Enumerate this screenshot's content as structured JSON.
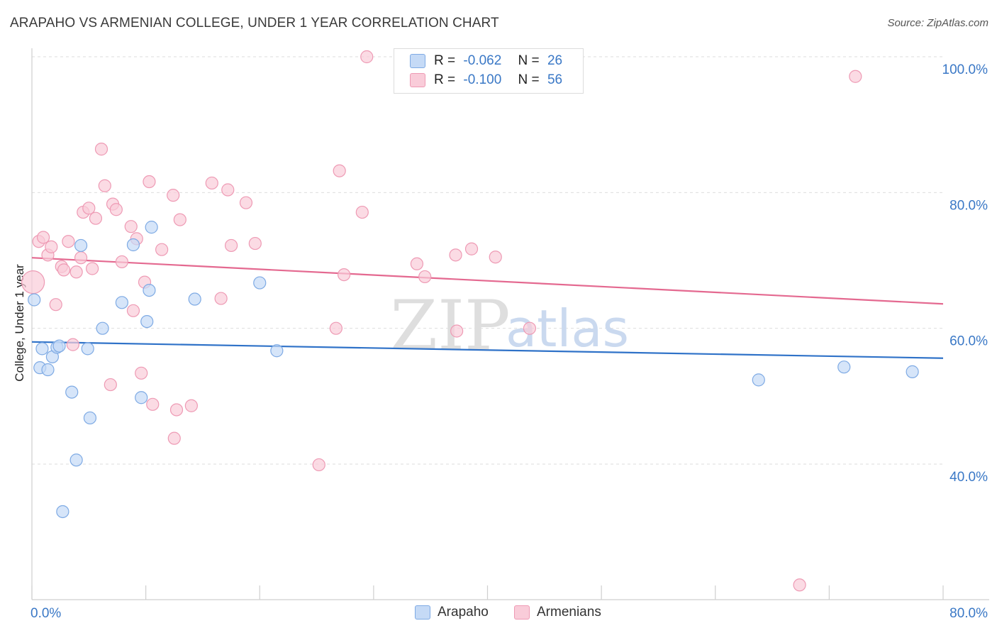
{
  "header": {
    "title": "ARAPAHO VS ARMENIAN COLLEGE, UNDER 1 YEAR CORRELATION CHART",
    "source": "Source: ZipAtlas.com"
  },
  "watermark": {
    "zip": "ZIP",
    "atlas": "atlas"
  },
  "legend": {
    "rows": [
      {
        "r_label": "R =",
        "r_value": "-0.062",
        "n_label": "N =",
        "n_value": "26"
      },
      {
        "r_label": "R =",
        "r_value": "-0.100",
        "n_label": "N =",
        "n_value": "56"
      }
    ]
  },
  "colors": {
    "arapaho_fill": "#c5daf6",
    "arapaho_stroke": "#7eaae4",
    "arapaho_line": "#2f72c8",
    "armenians_fill": "#f9ccd9",
    "armenians_stroke": "#ee9ab4",
    "armenians_line": "#e46990",
    "tick_label": "#3a78c6",
    "grid": "#dddddd"
  },
  "chart_data": {
    "type": "scatter",
    "title": "ARAPAHO VS ARMENIAN COLLEGE, UNDER 1 YEAR CORRELATION CHART",
    "xlabel": "",
    "ylabel": "College, Under 1 year",
    "xlim": [
      0,
      80
    ],
    "ylim": [
      21,
      104
    ],
    "x_tick_labels": [
      {
        "value": 0,
        "label": "0.0%"
      },
      {
        "value": 80,
        "label": "80.0%"
      }
    ],
    "y_tick_labels": [
      {
        "value": 100,
        "label": "100.0%"
      },
      {
        "value": 80,
        "label": "80.0%"
      },
      {
        "value": 60,
        "label": "60.0%"
      },
      {
        "value": 40,
        "label": "40.0%"
      }
    ],
    "legend_position": "top-center",
    "series": [
      {
        "name": "Arapaho",
        "r": -0.062,
        "n": 26,
        "trend": {
          "x": [
            0,
            80
          ],
          "y": [
            58.0,
            55.6
          ]
        },
        "points": [
          {
            "x": 0.2,
            "y": 64.2
          },
          {
            "x": 0.9,
            "y": 57.0
          },
          {
            "x": 0.7,
            "y": 54.2
          },
          {
            "x": 1.4,
            "y": 53.9
          },
          {
            "x": 1.8,
            "y": 55.8
          },
          {
            "x": 2.2,
            "y": 57.2
          },
          {
            "x": 2.4,
            "y": 57.4
          },
          {
            "x": 3.5,
            "y": 50.6
          },
          {
            "x": 3.9,
            "y": 40.6
          },
          {
            "x": 4.3,
            "y": 72.2
          },
          {
            "x": 4.9,
            "y": 57.0
          },
          {
            "x": 5.1,
            "y": 46.8
          },
          {
            "x": 2.7,
            "y": 33.0
          },
          {
            "x": 6.2,
            "y": 60.0
          },
          {
            "x": 7.9,
            "y": 63.8
          },
          {
            "x": 8.9,
            "y": 72.3
          },
          {
            "x": 9.6,
            "y": 49.8
          },
          {
            "x": 10.1,
            "y": 61.0
          },
          {
            "x": 10.3,
            "y": 65.6
          },
          {
            "x": 10.5,
            "y": 74.9
          },
          {
            "x": 14.3,
            "y": 64.3
          },
          {
            "x": 20.0,
            "y": 66.7
          },
          {
            "x": 21.5,
            "y": 56.7
          },
          {
            "x": 63.8,
            "y": 52.4
          },
          {
            "x": 71.3,
            "y": 54.3
          },
          {
            "x": 77.3,
            "y": 53.6
          }
        ]
      },
      {
        "name": "Armenians",
        "r": -0.1,
        "n": 56,
        "trend": {
          "x": [
            0,
            80
          ],
          "y": [
            70.4,
            63.6
          ]
        },
        "points": [
          {
            "x": 0.1,
            "y": 66.8
          },
          {
            "x": 0.6,
            "y": 72.8
          },
          {
            "x": 1.0,
            "y": 73.4
          },
          {
            "x": 1.4,
            "y": 70.8
          },
          {
            "x": 1.7,
            "y": 72.0
          },
          {
            "x": 2.1,
            "y": 63.5
          },
          {
            "x": 2.6,
            "y": 69.1
          },
          {
            "x": 2.8,
            "y": 68.6
          },
          {
            "x": 3.2,
            "y": 72.8
          },
          {
            "x": 3.6,
            "y": 57.6
          },
          {
            "x": 3.9,
            "y": 68.3
          },
          {
            "x": 4.3,
            "y": 70.4
          },
          {
            "x": 4.5,
            "y": 77.1
          },
          {
            "x": 5.0,
            "y": 77.7
          },
          {
            "x": 5.3,
            "y": 68.8
          },
          {
            "x": 5.6,
            "y": 76.2
          },
          {
            "x": 6.1,
            "y": 86.4
          },
          {
            "x": 6.4,
            "y": 81.0
          },
          {
            "x": 6.9,
            "y": 51.7
          },
          {
            "x": 7.1,
            "y": 78.3
          },
          {
            "x": 7.4,
            "y": 77.5
          },
          {
            "x": 7.9,
            "y": 69.8
          },
          {
            "x": 8.7,
            "y": 75.0
          },
          {
            "x": 8.9,
            "y": 62.6
          },
          {
            "x": 9.2,
            "y": 73.2
          },
          {
            "x": 9.6,
            "y": 53.4
          },
          {
            "x": 9.9,
            "y": 66.8
          },
          {
            "x": 10.3,
            "y": 81.6
          },
          {
            "x": 10.6,
            "y": 48.8
          },
          {
            "x": 11.4,
            "y": 71.6
          },
          {
            "x": 12.4,
            "y": 79.6
          },
          {
            "x": 13.0,
            "y": 76.0
          },
          {
            "x": 12.7,
            "y": 48.0
          },
          {
            "x": 12.5,
            "y": 43.8
          },
          {
            "x": 14.0,
            "y": 48.6
          },
          {
            "x": 15.8,
            "y": 81.4
          },
          {
            "x": 16.6,
            "y": 64.4
          },
          {
            "x": 17.2,
            "y": 80.4
          },
          {
            "x": 17.5,
            "y": 72.2
          },
          {
            "x": 18.8,
            "y": 78.5
          },
          {
            "x": 19.6,
            "y": 72.5
          },
          {
            "x": 25.2,
            "y": 39.9
          },
          {
            "x": 26.7,
            "y": 60.0
          },
          {
            "x": 27.0,
            "y": 83.2
          },
          {
            "x": 27.4,
            "y": 67.9
          },
          {
            "x": 29.0,
            "y": 77.1
          },
          {
            "x": 29.4,
            "y": 100.0
          },
          {
            "x": 33.8,
            "y": 69.5
          },
          {
            "x": 34.5,
            "y": 67.6
          },
          {
            "x": 37.2,
            "y": 70.8
          },
          {
            "x": 37.3,
            "y": 59.6
          },
          {
            "x": 38.6,
            "y": 71.7
          },
          {
            "x": 40.7,
            "y": 70.5
          },
          {
            "x": 43.7,
            "y": 60.0
          },
          {
            "x": 67.4,
            "y": 22.2
          },
          {
            "x": 72.3,
            "y": 97.1
          }
        ]
      }
    ],
    "bottom_legend": [
      "Arapaho",
      "Armenians"
    ]
  }
}
